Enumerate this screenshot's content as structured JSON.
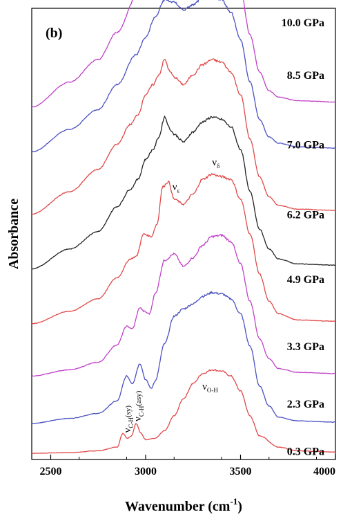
{
  "chart_data": {
    "type": "line",
    "panel_label": "(b)",
    "xlabel_base": "Wavenumber (cm",
    "xlabel_sup": "-1",
    "xlabel_close": ")",
    "ylabel": "Absorbance",
    "xlim": [
      2400,
      4000
    ],
    "xticks": [
      2500,
      3000,
      3500,
      4000
    ],
    "grid": false,
    "annotations": [
      {
        "main": "ν",
        "sub": "C-H",
        "tail": "(sy)",
        "x": 2905,
        "above_series": "0.3 GPa",
        "rotate": true
      },
      {
        "main": "ν",
        "sub": "C-H",
        "tail": "(asy)",
        "x": 2960,
        "above_series": "0.3 GPa",
        "rotate": true
      },
      {
        "main": "ν",
        "sub": "O-H",
        "tail": "",
        "x": 3340,
        "above_series": "0.3 GPa",
        "rotate": false
      },
      {
        "main": "ν",
        "sub": "ε",
        "tail": "",
        "x": 3160,
        "above_series": "4.9 GPa",
        "rotate": false
      },
      {
        "main": "ν",
        "sub": "δ",
        "tail": "",
        "x": 3370,
        "above_series": "4.9 GPa",
        "rotate": false
      }
    ],
    "series": [
      {
        "name": "0.3 GPa",
        "color": "#e04848",
        "offset": 0.0,
        "label_y": 0.02,
        "x": [
          2400,
          2600,
          2750,
          2850,
          2880,
          2905,
          2925,
          2950,
          2975,
          3000,
          3050,
          3100,
          3150,
          3200,
          3250,
          3300,
          3350,
          3400,
          3450,
          3500,
          3550,
          3600,
          3700,
          3800,
          4000
        ],
        "y": [
          0.0,
          0.005,
          0.02,
          0.05,
          0.16,
          0.12,
          0.14,
          0.24,
          0.16,
          0.11,
          0.12,
          0.18,
          0.3,
          0.44,
          0.56,
          0.64,
          0.67,
          0.66,
          0.62,
          0.5,
          0.3,
          0.14,
          0.05,
          0.02,
          0.01
        ]
      },
      {
        "name": "2.3 GPa",
        "color": "#4a50c0",
        "offset": 0.24,
        "label_y": 0.4,
        "x": [
          2400,
          2600,
          2750,
          2850,
          2900,
          2930,
          2970,
          3000,
          3030,
          3050,
          3100,
          3150,
          3200,
          3250,
          3300,
          3350,
          3400,
          3450,
          3500,
          3550,
          3600,
          3650,
          3700,
          3800,
          4000
        ],
        "y": [
          0.0,
          0.04,
          0.08,
          0.18,
          0.38,
          0.32,
          0.48,
          0.35,
          0.28,
          0.34,
          0.64,
          0.86,
          0.92,
          0.96,
          1.02,
          1.05,
          1.04,
          1.0,
          0.88,
          0.62,
          0.3,
          0.14,
          0.05,
          0.02,
          0.01
        ]
      },
      {
        "name": "3.3 GPa",
        "color": "#c040c8",
        "offset": 0.62,
        "label_y": 0.86,
        "x": [
          2400,
          2600,
          2750,
          2850,
          2900,
          2930,
          2970,
          2990,
          3020,
          3050,
          3100,
          3150,
          3200,
          3250,
          3300,
          3350,
          3400,
          3450,
          3500,
          3550,
          3600,
          3650,
          3700,
          3800,
          4000
        ],
        "y": [
          0.0,
          0.05,
          0.11,
          0.25,
          0.4,
          0.38,
          0.55,
          0.52,
          0.5,
          0.66,
          0.93,
          0.98,
          0.88,
          0.95,
          1.05,
          1.12,
          1.13,
          1.08,
          0.9,
          0.6,
          0.3,
          0.14,
          0.06,
          0.03,
          0.02
        ]
      },
      {
        "name": "4.9 GPa",
        "color": "#e04848",
        "offset": 1.04,
        "label_y": 1.4,
        "x": [
          2400,
          2600,
          2750,
          2850,
          2920,
          2950,
          2990,
          3030,
          3060,
          3090,
          3120,
          3150,
          3200,
          3250,
          3300,
          3350,
          3400,
          3450,
          3500,
          3550,
          3600,
          3650,
          3700,
          3800,
          4000
        ],
        "y": [
          0.0,
          0.1,
          0.2,
          0.37,
          0.52,
          0.54,
          0.72,
          0.7,
          0.8,
          1.1,
          1.14,
          1.0,
          0.96,
          1.04,
          1.16,
          1.2,
          1.18,
          1.16,
          1.0,
          0.72,
          0.4,
          0.18,
          0.08,
          0.03,
          0.02
        ]
      },
      {
        "name": "6.2 GPa",
        "color": "#222222",
        "offset": 1.48,
        "label_y": 1.92,
        "x": [
          2400,
          2600,
          2750,
          2850,
          2920,
          2960,
          3000,
          3040,
          3070,
          3100,
          3130,
          3150,
          3200,
          3250,
          3300,
          3350,
          3400,
          3450,
          3500,
          3550,
          3600,
          3650,
          3700,
          3800,
          4000
        ],
        "y": [
          0.0,
          0.16,
          0.3,
          0.5,
          0.64,
          0.72,
          0.88,
          0.96,
          1.06,
          1.22,
          1.12,
          1.08,
          1.02,
          1.1,
          1.18,
          1.22,
          1.2,
          1.14,
          0.96,
          0.62,
          0.32,
          0.16,
          0.08,
          0.04,
          0.03
        ]
      },
      {
        "name": "7.0 GPa",
        "color": "#e04848",
        "offset": 1.92,
        "label_y": 2.48,
        "x": [
          2400,
          2600,
          2750,
          2850,
          2920,
          2960,
          3000,
          3040,
          3070,
          3100,
          3130,
          3150,
          3200,
          3250,
          3300,
          3350,
          3400,
          3450,
          3500,
          3550,
          3600,
          3650,
          3700,
          3800,
          4000
        ],
        "y": [
          0.0,
          0.18,
          0.36,
          0.56,
          0.72,
          0.8,
          0.96,
          1.04,
          1.12,
          1.24,
          1.14,
          1.1,
          1.04,
          1.12,
          1.2,
          1.24,
          1.22,
          1.14,
          0.96,
          0.6,
          0.3,
          0.14,
          0.07,
          0.04,
          0.03
        ]
      },
      {
        "name": "8.5 GPa",
        "color": "#4a50c0",
        "offset": 2.42,
        "label_y": 3.04,
        "x": [
          2400,
          2600,
          2750,
          2850,
          2950,
          3000,
          3050,
          3100,
          3150,
          3200,
          3250,
          3300,
          3350,
          3400,
          3450,
          3500,
          3550,
          3600,
          3650,
          3700,
          3800,
          4000
        ],
        "y": [
          0.0,
          0.18,
          0.34,
          0.54,
          0.78,
          0.92,
          1.08,
          1.22,
          1.2,
          1.14,
          1.18,
          1.24,
          1.26,
          1.22,
          1.12,
          0.9,
          0.56,
          0.26,
          0.12,
          0.07,
          0.04,
          0.03
        ]
      },
      {
        "name": "10.0 GPa",
        "color": "#c040c8",
        "offset": 2.78,
        "label_y": 3.46,
        "x": [
          2400,
          2600,
          2750,
          2850,
          2950,
          3000,
          3050,
          3100,
          3150,
          3200,
          3250,
          3300,
          3350,
          3400,
          3450,
          3500,
          3550,
          3600,
          3650,
          3700,
          3800,
          4000
        ],
        "y": [
          0.0,
          0.2,
          0.38,
          0.6,
          0.88,
          1.04,
          1.2,
          1.3,
          1.34,
          1.32,
          1.36,
          1.38,
          1.36,
          1.3,
          1.18,
          0.94,
          0.58,
          0.28,
          0.13,
          0.08,
          0.05,
          0.04
        ]
      }
    ]
  }
}
